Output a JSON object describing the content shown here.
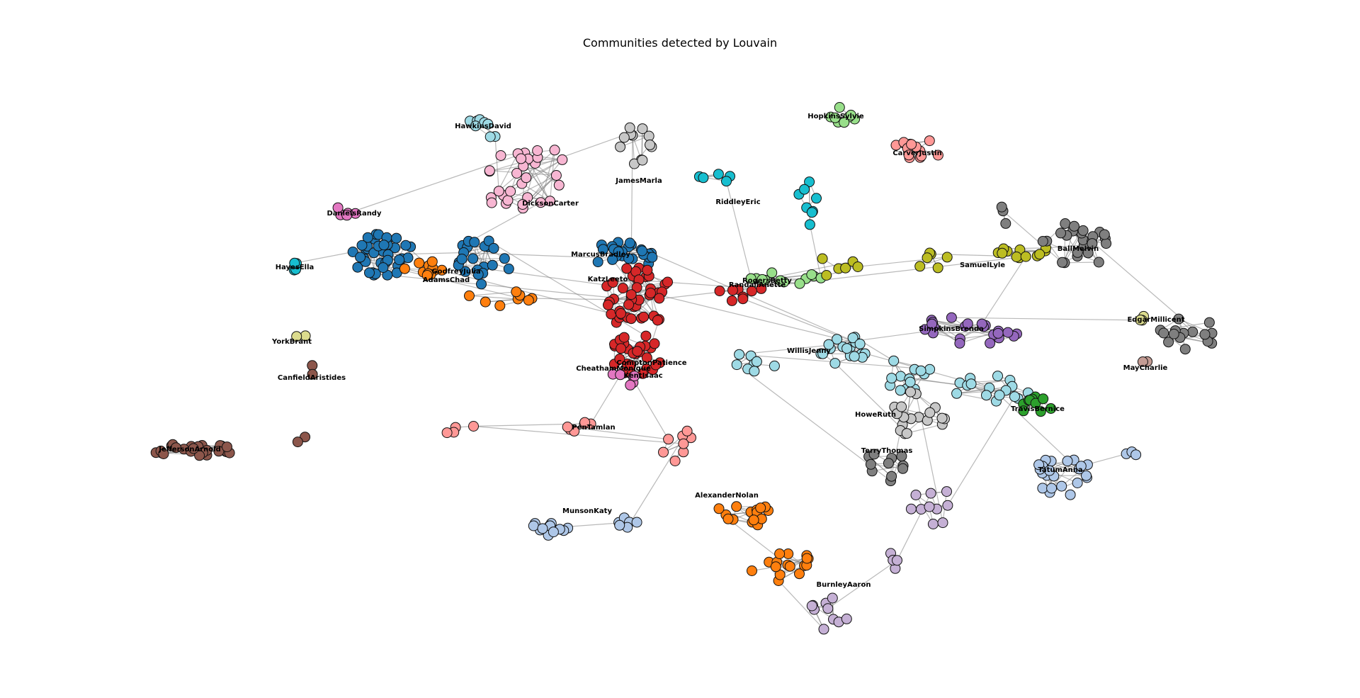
{
  "title": "Communities detected by Louvain",
  "communities": [
    {
      "id": "blue",
      "color": "#1f77b4"
    },
    {
      "id": "orange",
      "color": "#ff7f0e"
    },
    {
      "id": "red",
      "color": "#d62728"
    },
    {
      "id": "pink",
      "color": "#f7b6d2"
    },
    {
      "id": "lightgrey",
      "color": "#c7c7c7"
    },
    {
      "id": "darkgrey",
      "color": "#7f7f7f"
    },
    {
      "id": "lightblue",
      "color": "#9edae5"
    },
    {
      "id": "periwinkle",
      "color": "#aec7e8"
    },
    {
      "id": "purple",
      "color": "#9467bd"
    },
    {
      "id": "lavender",
      "color": "#c5b0d5"
    },
    {
      "id": "olive",
      "color": "#bcbd22"
    },
    {
      "id": "lightgreen",
      "color": "#98df8a"
    },
    {
      "id": "green",
      "color": "#2ca02c"
    },
    {
      "id": "salmon",
      "color": "#ff9896"
    },
    {
      "id": "brown",
      "color": "#8c564b"
    },
    {
      "id": "cyan",
      "color": "#17becf"
    },
    {
      "id": "magenta",
      "color": "#e377c2"
    },
    {
      "id": "khaki",
      "color": "#dbdb8d"
    },
    {
      "id": "tan",
      "color": "#c49c94"
    }
  ],
  "labels": [
    "HawkinsDavid",
    "JamesMarla",
    "HopkinsSylvie",
    "CarverJustin",
    "DicksonCarter",
    "RiddleyEric",
    "DanielsRandy",
    "MarcusBradley",
    "GodfreyJulia",
    "AdamsChad",
    "HayesElla",
    "KatzLeeto",
    "RogersBetty",
    "RandallAnette",
    "SamuelLyle",
    "BallMelvin",
    "SimpkinsBrenda",
    "EdgarMillicent",
    "YorkBrant",
    "CanfieldAristides",
    "WillisJenny",
    "MayCharlie",
    "CheathamMonique",
    "ComptonPatience",
    "KentIsaac",
    "HoweRuth",
    "TravisBernice",
    "JeffersonArnold",
    "PenTamlan",
    "TerryThomas",
    "TatumAnna",
    "AlexanderNolan",
    "MunsonKaty",
    "BurnleyAaron"
  ]
}
